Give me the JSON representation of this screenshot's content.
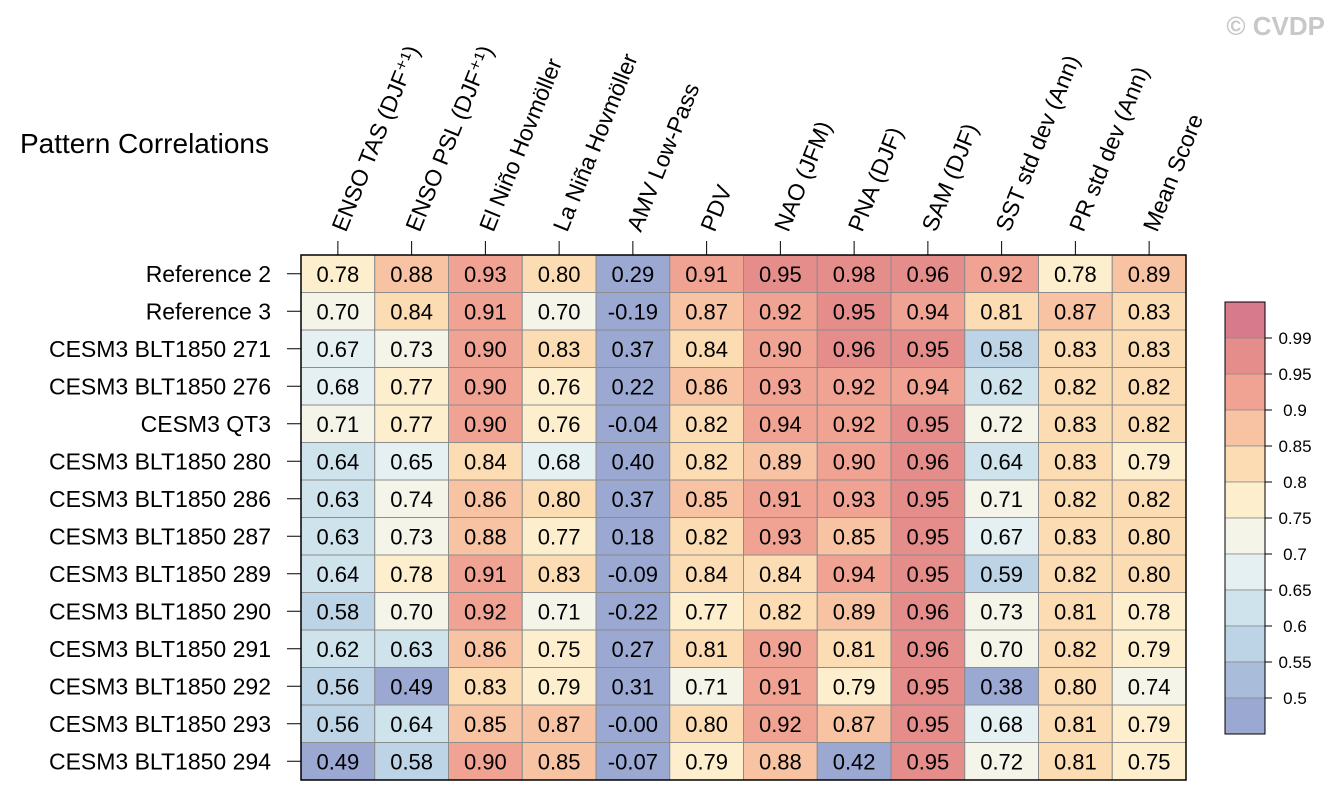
{
  "watermark": "© CVDP",
  "chart_data": {
    "type": "heatmap",
    "title": "Pattern Correlations",
    "columns": [
      "ENSO TAS (DJF⁺¹)",
      "ENSO PSL (DJF⁺¹)",
      "El Niño Hovmöller",
      "La Niña Hovmöller",
      "AMV Low-Pass",
      "PDV",
      "NAO (JFM)",
      "PNA (DJF)",
      "SAM (DJF)",
      "SST std dev (Ann)",
      "PR std dev (Ann)",
      "Mean Score"
    ],
    "rows": [
      "Reference 2",
      "Reference 3",
      "CESM3 BLT1850 271",
      "CESM3 BLT1850 276",
      "CESM3 QT3",
      "CESM3 BLT1850 280",
      "CESM3 BLT1850 286",
      "CESM3 BLT1850 287",
      "CESM3 BLT1850 289",
      "CESM3 BLT1850 290",
      "CESM3 BLT1850 291",
      "CESM3 BLT1850 292",
      "CESM3 BLT1850 293",
      "CESM3 BLT1850 294"
    ],
    "values": [
      [
        "0.78",
        "0.88",
        "0.93",
        "0.80",
        "0.29",
        "0.91",
        "0.95",
        "0.98",
        "0.96",
        "0.92",
        "0.78",
        "0.89"
      ],
      [
        "0.70",
        "0.84",
        "0.91",
        "0.70",
        "-0.19",
        "0.87",
        "0.92",
        "0.95",
        "0.94",
        "0.81",
        "0.87",
        "0.83"
      ],
      [
        "0.67",
        "0.73",
        "0.90",
        "0.83",
        "0.37",
        "0.84",
        "0.90",
        "0.96",
        "0.95",
        "0.58",
        "0.83",
        "0.83"
      ],
      [
        "0.68",
        "0.77",
        "0.90",
        "0.76",
        "0.22",
        "0.86",
        "0.93",
        "0.92",
        "0.94",
        "0.62",
        "0.82",
        "0.82"
      ],
      [
        "0.71",
        "0.77",
        "0.90",
        "0.76",
        "-0.04",
        "0.82",
        "0.94",
        "0.92",
        "0.95",
        "0.72",
        "0.83",
        "0.82"
      ],
      [
        "0.64",
        "0.65",
        "0.84",
        "0.68",
        "0.40",
        "0.82",
        "0.89",
        "0.90",
        "0.96",
        "0.64",
        "0.83",
        "0.79"
      ],
      [
        "0.63",
        "0.74",
        "0.86",
        "0.80",
        "0.37",
        "0.85",
        "0.91",
        "0.93",
        "0.95",
        "0.71",
        "0.82",
        "0.82"
      ],
      [
        "0.63",
        "0.73",
        "0.88",
        "0.77",
        "0.18",
        "0.82",
        "0.93",
        "0.85",
        "0.95",
        "0.67",
        "0.83",
        "0.80"
      ],
      [
        "0.64",
        "0.78",
        "0.91",
        "0.83",
        "-0.09",
        "0.84",
        "0.84",
        "0.94",
        "0.95",
        "0.59",
        "0.82",
        "0.80"
      ],
      [
        "0.58",
        "0.70",
        "0.92",
        "0.71",
        "-0.22",
        "0.77",
        "0.82",
        "0.89",
        "0.96",
        "0.73",
        "0.81",
        "0.78"
      ],
      [
        "0.62",
        "0.63",
        "0.86",
        "0.75",
        "0.27",
        "0.81",
        "0.90",
        "0.81",
        "0.96",
        "0.70",
        "0.82",
        "0.79"
      ],
      [
        "0.56",
        "0.49",
        "0.83",
        "0.79",
        "0.31",
        "0.71",
        "0.91",
        "0.79",
        "0.95",
        "0.38",
        "0.80",
        "0.74"
      ],
      [
        "0.56",
        "0.64",
        "0.85",
        "0.87",
        "-0.00",
        "0.80",
        "0.92",
        "0.87",
        "0.95",
        "0.68",
        "0.81",
        "0.79"
      ],
      [
        "0.49",
        "0.58",
        "0.90",
        "0.85",
        "-0.07",
        "0.79",
        "0.88",
        "0.42",
        "0.95",
        "0.72",
        "0.81",
        "0.75"
      ]
    ],
    "colorbar": {
      "labels": [
        "0.99",
        "0.95",
        "0.9",
        "0.85",
        "0.8",
        "0.75",
        "0.7",
        "0.65",
        "0.6",
        "0.55",
        "0.5"
      ],
      "thresholds": [
        0.5,
        0.55,
        0.6,
        0.65,
        0.7,
        0.75,
        0.8,
        0.85,
        0.9,
        0.95,
        0.99
      ],
      "colors": [
        "#9aa8d2",
        "#a9bddb",
        "#bcd4e5",
        "#cfe3ec",
        "#e4f0f2",
        "#f4f4e8",
        "#fdefce",
        "#fcdcb3",
        "#f8c3a2",
        "#f0a393",
        "#e58d8b",
        "#d77a8c"
      ]
    }
  }
}
